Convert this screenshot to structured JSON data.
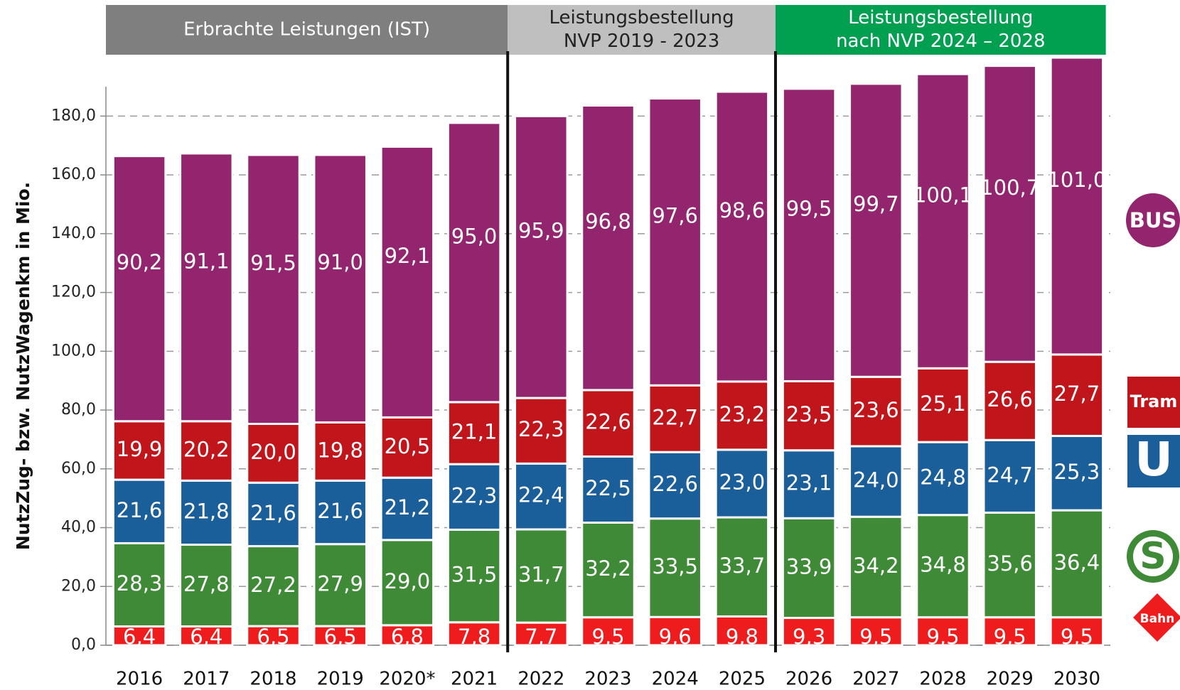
{
  "chart_data": {
    "type": "stacked_bar",
    "y_label": "NutzZug- bzw. NutzWagenkm in Mio.",
    "periods": [
      {
        "lines": [
          "Erbrachte Leistungen (IST)"
        ],
        "color": "#7f7f7f"
      },
      {
        "lines": [
          "Leistungsbestellung",
          "NVP 2019 - 2023"
        ],
        "color": "#bfbfbf"
      },
      {
        "lines": [
          "Leistungsbestellung",
          "nach NVP 2024 – 2028"
        ],
        "color": "#00a050"
      }
    ],
    "categories": [
      "2016",
      "2017",
      "2018",
      "2019",
      "2020*",
      "2021",
      "2022",
      "2023",
      "2024",
      "2025",
      "2026",
      "2027",
      "2028",
      "2029",
      "2030"
    ],
    "series": [
      {
        "name": "Bahn",
        "color": "#ee1c1c",
        "values": [
          6.4,
          6.4,
          6.5,
          6.5,
          6.8,
          7.8,
          7.7,
          9.5,
          9.6,
          9.8,
          9.3,
          9.5,
          9.5,
          9.5,
          9.5
        ],
        "value_labels": [
          "6,4",
          "6,4",
          "6,5",
          "6,5",
          "6,8",
          "7,8",
          "7,7",
          "9,5",
          "9,6",
          "9,8",
          "9,3",
          "9,5",
          "9,5",
          "9,5",
          "9,5"
        ]
      },
      {
        "name": "S",
        "color": "#3f8a36",
        "values": [
          28.3,
          27.8,
          27.2,
          27.9,
          29.0,
          31.5,
          31.7,
          32.2,
          33.5,
          33.7,
          33.9,
          34.2,
          34.8,
          35.6,
          36.4
        ],
        "value_labels": [
          "28,3",
          "27,8",
          "27,2",
          "27,9",
          "29,0",
          "31,5",
          "31,7",
          "32,2",
          "33,5",
          "33,7",
          "33,9",
          "34,2",
          "34,8",
          "35,6",
          "36,4"
        ]
      },
      {
        "name": "U",
        "color": "#1a5f9a",
        "values": [
          21.6,
          21.8,
          21.6,
          21.6,
          21.2,
          22.3,
          22.4,
          22.5,
          22.6,
          23.0,
          23.1,
          24.0,
          24.8,
          24.7,
          25.3
        ],
        "value_labels": [
          "21,6",
          "21,8",
          "21,6",
          "21,6",
          "21,2",
          "22,3",
          "22,4",
          "22,5",
          "22,6",
          "23,0",
          "23,1",
          "24,0",
          "24,8",
          "24,7",
          "25,3"
        ]
      },
      {
        "name": "Tram",
        "color": "#c0161b",
        "values": [
          19.9,
          20.2,
          20.0,
          19.8,
          20.5,
          21.1,
          22.3,
          22.6,
          22.7,
          23.2,
          23.5,
          23.6,
          25.1,
          26.6,
          27.7
        ],
        "value_labels": [
          "19,9",
          "20,2",
          "20,0",
          "19,8",
          "20,5",
          "21,1",
          "22,3",
          "22,6",
          "22,7",
          "23,2",
          "23,5",
          "23,6",
          "25,1",
          "26,6",
          "27,7"
        ]
      },
      {
        "name": "BUS",
        "color": "#93256e",
        "values": [
          90.2,
          91.1,
          91.5,
          91.0,
          92.1,
          95.0,
          95.9,
          96.8,
          97.6,
          98.6,
          99.5,
          99.7,
          100.1,
          100.7,
          101.0
        ],
        "value_labels": [
          "90,2",
          "91,1",
          "91,5",
          "91,0",
          "92,1",
          "95,0",
          "95,9",
          "96,8",
          "97,6",
          "98,6",
          "99,5",
          "99,7",
          "100,1",
          "100,7",
          "101,0"
        ]
      }
    ],
    "ylim": [
      0,
      190
    ],
    "yticks": [
      {
        "value": 0,
        "label": "0,0"
      },
      {
        "value": 20,
        "label": "20,0"
      },
      {
        "value": 40,
        "label": "40,0"
      },
      {
        "value": 60,
        "label": "60,0"
      },
      {
        "value": 80,
        "label": "80,0"
      },
      {
        "value": 100,
        "label": "100,0"
      },
      {
        "value": 120,
        "label": "120,0"
      },
      {
        "value": 140,
        "label": "140,0"
      },
      {
        "value": 160,
        "label": "160,0"
      },
      {
        "value": 180,
        "label": "180,0"
      }
    ],
    "grid": true
  }
}
